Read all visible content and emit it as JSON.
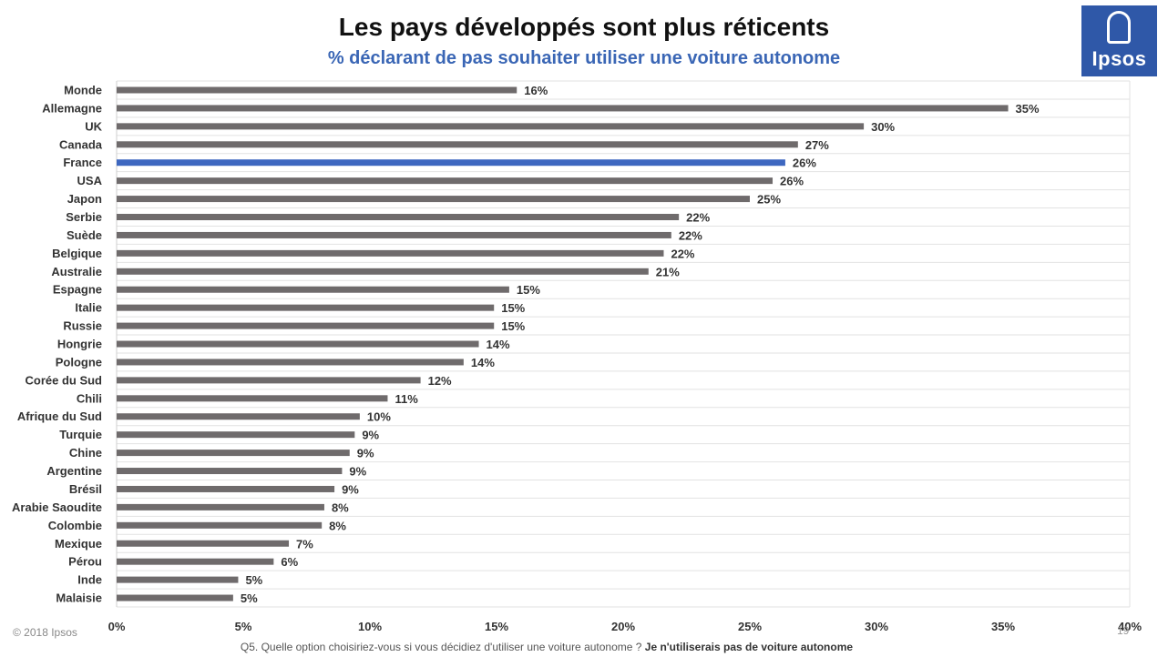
{
  "title": "Les pays développés sont plus réticents",
  "subtitle": "% déclarant de pas souhaiter utiliser une voiture autonome",
  "logo": {
    "text": "Ipsos",
    "color": "#2f58a8"
  },
  "copyright": "© 2018 Ipsos",
  "page_number": "19",
  "footnote": {
    "question": "Q5. Quelle option choisiriez-vous si vous décidiez d'utiliser une voiture autonome ?",
    "answer": "Je n'utiliserais pas de voiture autonome"
  },
  "colors": {
    "bar": "#6f6b6c",
    "highlight": "#3d67c0",
    "grid": "#e2e2e2"
  },
  "chart_data": {
    "type": "bar",
    "orientation": "horizontal",
    "highlight": "France",
    "xlim": [
      0,
      40
    ],
    "grid": true,
    "xticks": [
      "0%",
      "5%",
      "10%",
      "15%",
      "20%",
      "25%",
      "30%",
      "35%",
      "40%"
    ],
    "categories": [
      "Monde",
      "Allemagne",
      "UK",
      "Canada",
      "France",
      "USA",
      "Japon",
      "Serbie",
      "Suède",
      "Belgique",
      "Australie",
      "Espagne",
      "Italie",
      "Russie",
      "Hongrie",
      "Pologne",
      "Corée du Sud",
      "Chili",
      "Afrique du Sud",
      "Turquie",
      "Chine",
      "Argentine",
      "Brésil",
      "Arabie Saoudite",
      "Colombie",
      "Mexique",
      "Pérou",
      "Inde",
      "Malaisie"
    ],
    "values": [
      15.8,
      35.2,
      29.5,
      26.9,
      26.4,
      25.9,
      25.0,
      22.2,
      21.9,
      21.6,
      21.0,
      15.5,
      14.9,
      14.9,
      14.3,
      13.7,
      12.0,
      10.7,
      9.6,
      9.4,
      9.2,
      8.9,
      8.6,
      8.2,
      8.1,
      6.8,
      6.2,
      4.8,
      4.6
    ],
    "labels": [
      "16%",
      "35%",
      "30%",
      "27%",
      "26%",
      "26%",
      "25%",
      "22%",
      "22%",
      "22%",
      "21%",
      "15%",
      "15%",
      "15%",
      "14%",
      "14%",
      "12%",
      "11%",
      "10%",
      "9%",
      "9%",
      "9%",
      "9%",
      "8%",
      "8%",
      "7%",
      "6%",
      "5%",
      "5%"
    ]
  }
}
